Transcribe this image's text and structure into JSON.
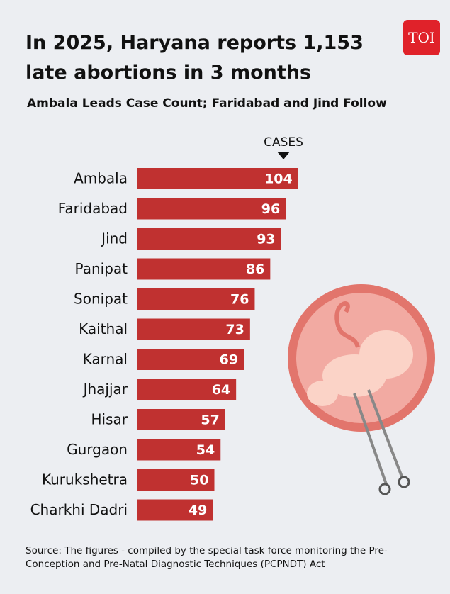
{
  "chart_data": {
    "type": "bar",
    "orientation": "horizontal",
    "title": "In 2025, Haryana reports 1,153 late abortions in 3 months",
    "subtitle": "Ambala Leads Case Count; Faridabad and Jind Follow",
    "value_axis_label": "CASES",
    "categories": [
      "Ambala",
      "Faridabad",
      "Jind",
      "Panipat",
      "Sonipat",
      "Kaithal",
      "Karnal",
      "Jhajjar",
      "Hisar",
      "Gurgaon",
      "Kurukshetra",
      "Charkhi Dadri"
    ],
    "values": [
      104,
      96,
      93,
      86,
      76,
      73,
      69,
      64,
      57,
      54,
      50,
      49
    ],
    "color": "#c03130",
    "source": "Source: The figures - compiled by the special task force monitoring the Pre-Conception and Pre-Natal Diagnostic Techniques (PCPNDT) Act",
    "logo": "TOI"
  }
}
